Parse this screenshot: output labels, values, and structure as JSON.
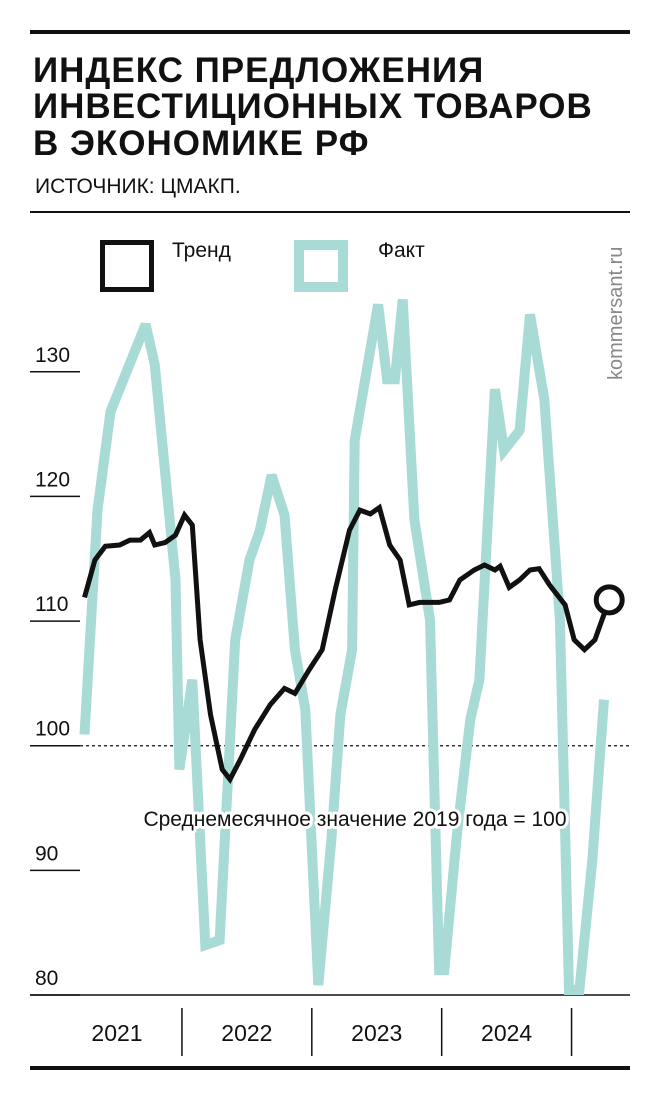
{
  "chart_data": {
    "type": "line",
    "title": [
      "ИНДЕКС ПРЕДЛОЖЕНИЯ",
      "ИНВЕСТИЦИОННЫХ ТОВАРОВ",
      "В ЭКОНОМИКЕ РФ"
    ],
    "subtitle": "ИСТОЧНИК: ЦМАКП.",
    "watermark": "kommersant.ru",
    "reference": {
      "value": 100,
      "label": "Среднемесячное значение 2019 года = 100"
    },
    "xlim": [
      2020.83,
      2025.45
    ],
    "xticks": [
      {
        "value": 2021.5,
        "label": "2021"
      },
      {
        "value": 2022.5,
        "label": "2022"
      },
      {
        "value": 2023.5,
        "label": "2023"
      },
      {
        "value": 2024.5,
        "label": "2024"
      }
    ],
    "ylim": [
      80,
      136
    ],
    "yticks": [
      80,
      90,
      100,
      110,
      120,
      130
    ],
    "series": [
      {
        "name": "Факт",
        "color": "#a9dbd6",
        "width": 10,
        "x": [
          2021.25,
          2021.35,
          2021.45,
          2021.72,
          2021.79,
          2021.95,
          2021.98,
          2022.08,
          2022.18,
          2022.29,
          2022.41,
          2022.52,
          2022.6,
          2022.69,
          2022.79,
          2022.87,
          2022.95,
          2023.05,
          2023.15,
          2023.22,
          2023.31,
          2023.33,
          2023.51,
          2023.58,
          2023.64,
          2023.7,
          2023.79,
          2023.91,
          2023.98,
          2024.02,
          2024.12,
          2024.22,
          2024.29,
          2024.41,
          2024.48,
          2024.6,
          2024.68,
          2024.79,
          2024.91,
          2024.98,
          2025.06,
          2025.16,
          2025.25
        ],
        "values": [
          100.9,
          118.9,
          126.8,
          133.8,
          130.6,
          113.3,
          98.1,
          105.3,
          84.0,
          84.4,
          108.5,
          114.9,
          117.3,
          121.7,
          118.5,
          107.7,
          102.9,
          80.8,
          92.4,
          102.5,
          107.7,
          124.5,
          135.4,
          129.4,
          129.4,
          135.8,
          118.1,
          110.1,
          82.0,
          82.0,
          93.2,
          102.1,
          105.3,
          128.6,
          123.7,
          125.3,
          134.6,
          127.8,
          110.1,
          80.4,
          80.4,
          90.8,
          103.7
        ]
      },
      {
        "name": "Тренд",
        "color": "#111111",
        "width": 5,
        "x": [
          2021.25,
          2021.33,
          2021.41,
          2021.52,
          2021.6,
          2021.68,
          2021.75,
          2021.79,
          2021.87,
          2021.95,
          2022.02,
          2022.08,
          2022.14,
          2022.22,
          2022.31,
          2022.37,
          2022.45,
          2022.56,
          2022.68,
          2022.79,
          2022.87,
          2022.98,
          2023.08,
          2023.18,
          2023.29,
          2023.37,
          2023.45,
          2023.52,
          2023.6,
          2023.68,
          2023.75,
          2023.83,
          2023.98,
          2024.06,
          2024.14,
          2024.25,
          2024.33,
          2024.41,
          2024.45,
          2024.52,
          2024.6,
          2024.68,
          2024.75,
          2024.83,
          2024.95,
          2025.02,
          2025.1,
          2025.18,
          2025.29
        ],
        "values": [
          111.9,
          114.9,
          116.0,
          116.1,
          116.5,
          116.5,
          117.1,
          116.1,
          116.3,
          116.9,
          118.5,
          117.7,
          108.5,
          102.5,
          98.1,
          97.3,
          98.9,
          101.3,
          103.3,
          104.6,
          104.2,
          106.1,
          107.7,
          112.5,
          117.3,
          118.9,
          118.6,
          119.1,
          116.1,
          114.9,
          111.3,
          111.5,
          111.5,
          111.7,
          113.3,
          114.1,
          114.5,
          114.1,
          114.4,
          112.7,
          113.3,
          114.1,
          114.2,
          112.9,
          111.3,
          108.5,
          107.7,
          108.5,
          111.7
        ]
      }
    ]
  }
}
